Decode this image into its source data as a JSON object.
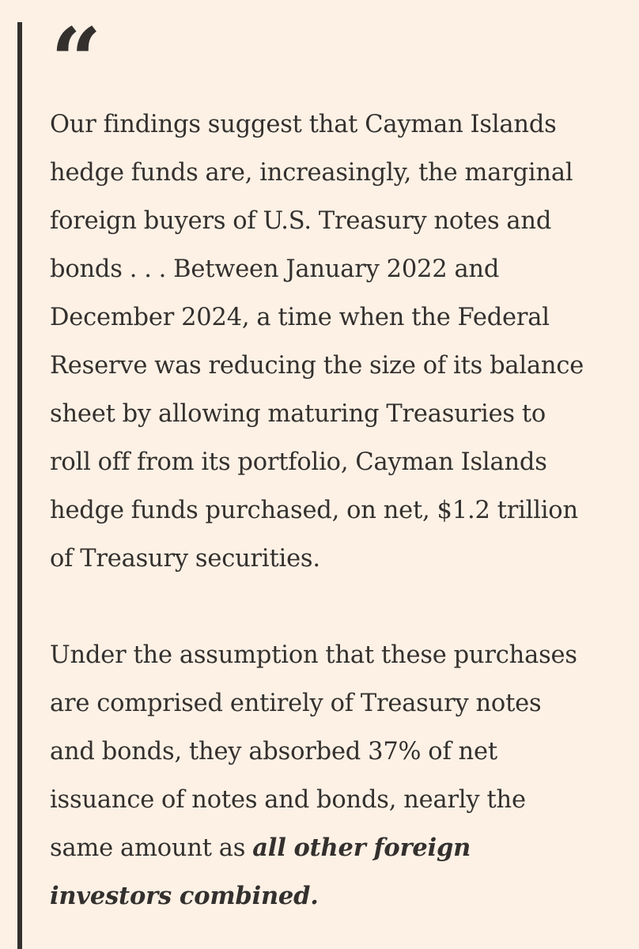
{
  "quote": {
    "mark": "“",
    "paragraphs": [
      {
        "lines": [
          "Our findings suggest that Cayman Islands",
          "hedge funds are, increasingly, the marginal",
          "foreign buyers of U.S. Treasury notes and",
          "bonds . . . Between January 2022 and",
          "December 2024, a time when the Federal",
          "Reserve was reducing the size of its balance",
          "sheet by allowing maturing Treasuries to",
          "roll off from its portfolio, Cayman Islands",
          "hedge funds purchased, on net, $1.2 trillion",
          "of Treasury securities."
        ]
      },
      {
        "lines": [
          "Under the assumption that these purchases",
          "are comprised entirely of Treasury notes",
          "and bonds, they absorbed 37% of net",
          "issuance of notes and bonds, nearly the",
          "same amount as "
        ],
        "emphasis_lines": [
          "all other foreign",
          "investors combined."
        ]
      }
    ]
  },
  "colors": {
    "background": "#fdf1e5",
    "text": "#33302e",
    "bar": "#33302e"
  }
}
